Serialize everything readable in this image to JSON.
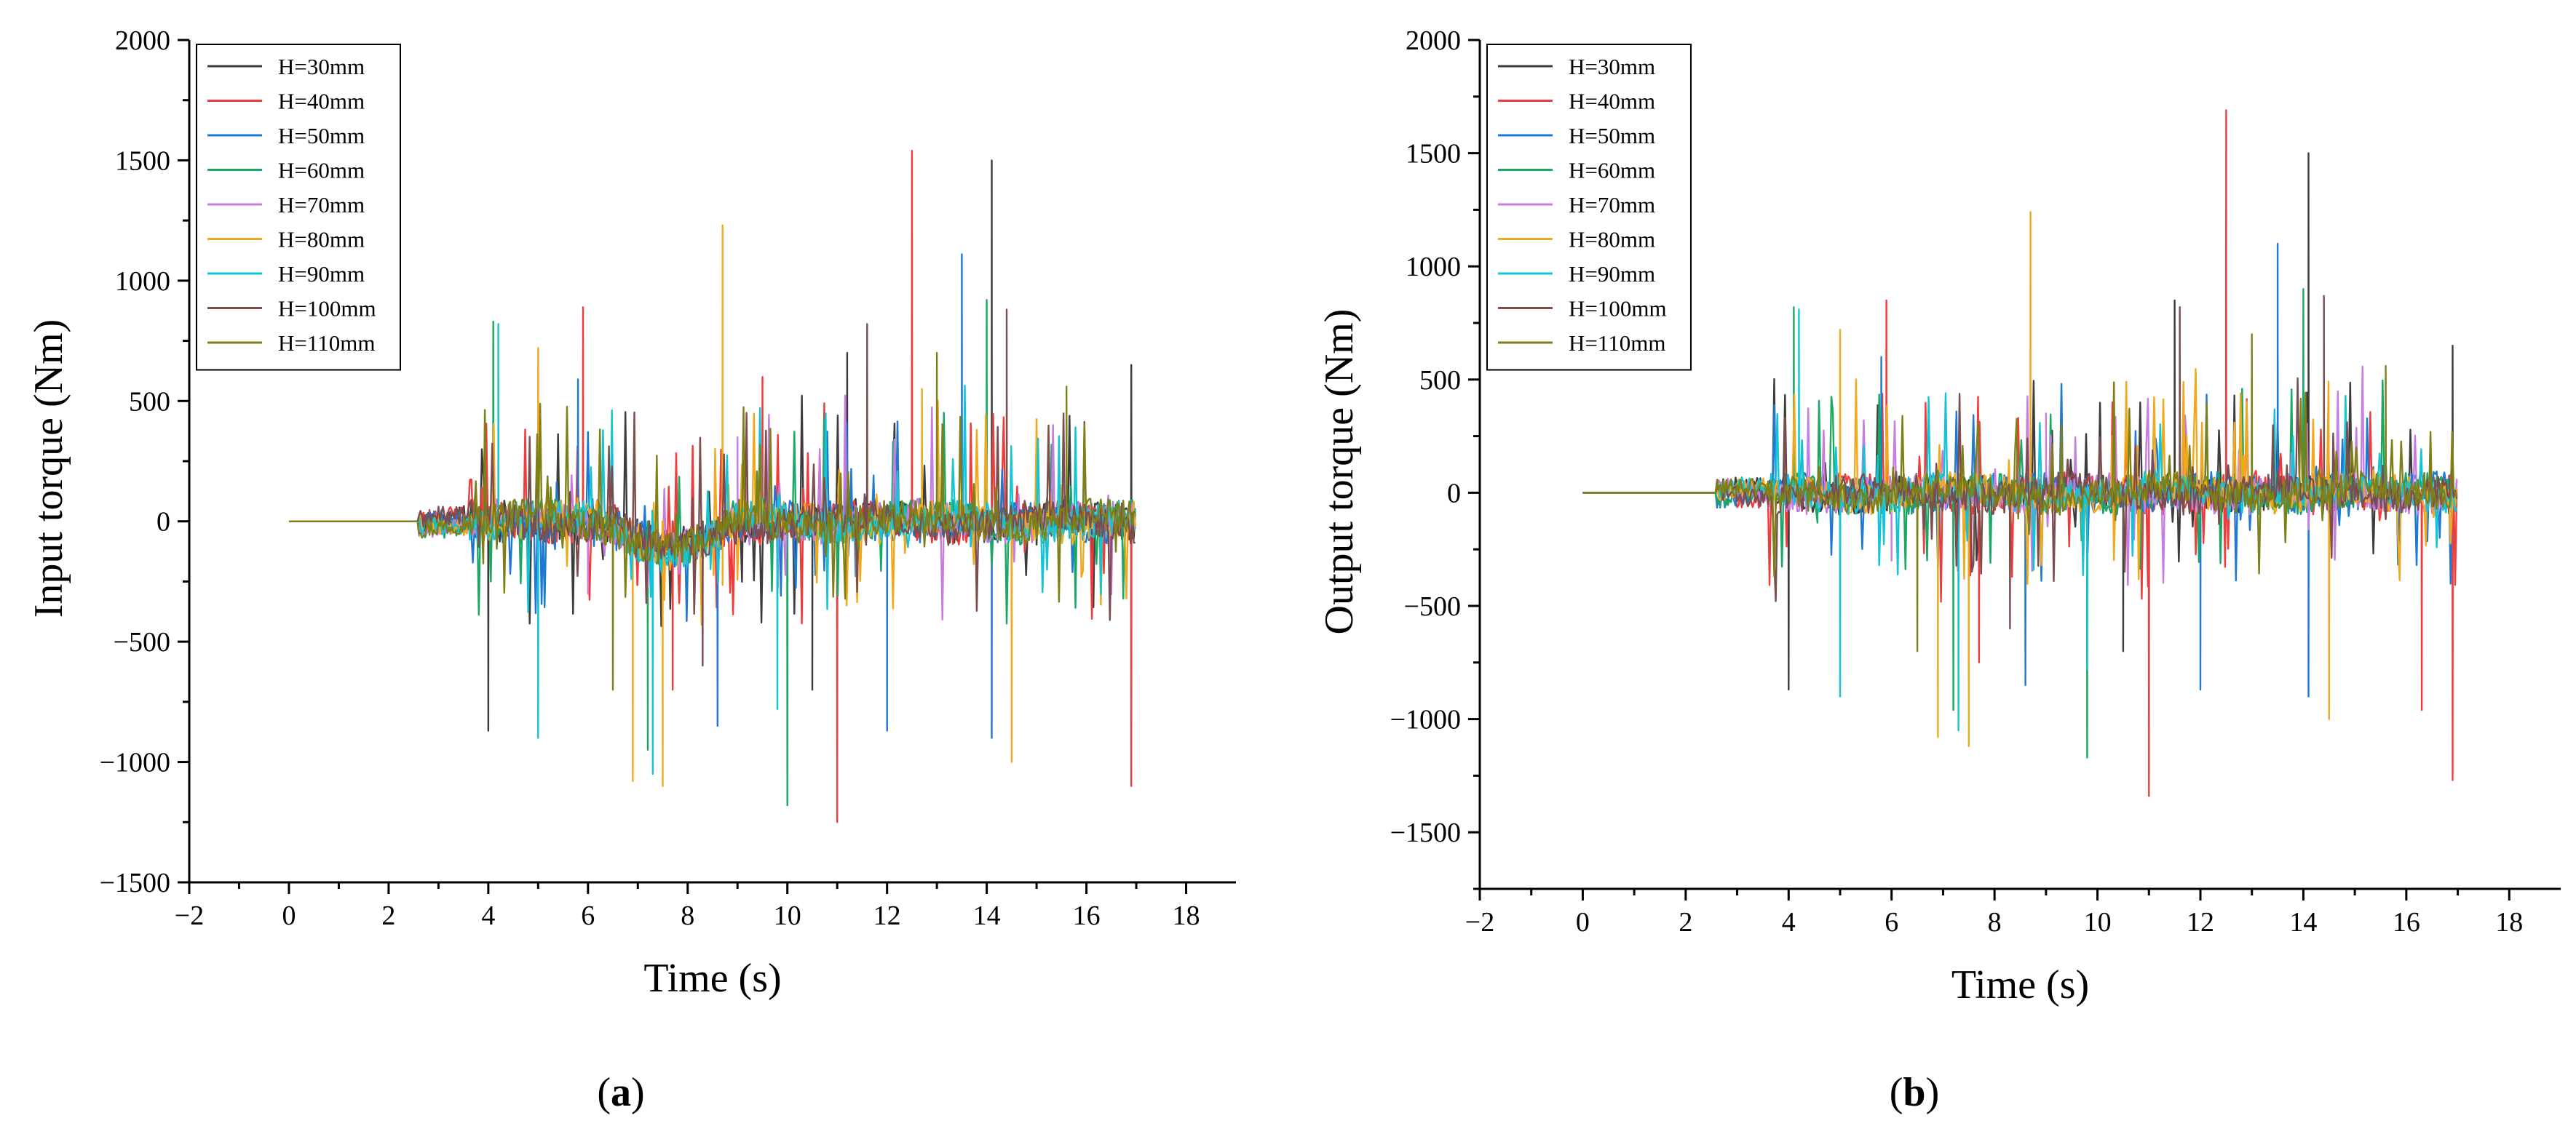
{
  "chart_data": [
    {
      "type": "line",
      "panel_label": "a",
      "title": "",
      "xlabel": "Time  (s)",
      "ylabel": "Input torque  (Nm)",
      "xlim": [
        -2,
        19
      ],
      "ylim": [
        -1500,
        2000
      ],
      "xticks": [
        -2,
        0,
        2,
        4,
        6,
        8,
        10,
        12,
        14,
        16,
        18
      ],
      "yticks": [
        -1500,
        -1000,
        -500,
        0,
        500,
        1000,
        1500,
        2000
      ],
      "legend_position": "top-left",
      "series": [
        {
          "name": "H=30mm",
          "color": "#3c3c3c",
          "seed": 11,
          "spikes": [
            [
              14.1,
              1500
            ],
            [
              11.2,
              700
            ],
            [
              16.9,
              650
            ],
            [
              4.0,
              -870
            ],
            [
              10.5,
              -700
            ]
          ]
        },
        {
          "name": "H=40mm",
          "color": "#ef3b3b",
          "seed": 23,
          "spikes": [
            [
              12.5,
              1540
            ],
            [
              5.9,
              890
            ],
            [
              11.0,
              -1250
            ],
            [
              16.9,
              -1100
            ],
            [
              7.7,
              -700
            ],
            [
              9.5,
              600
            ]
          ]
        },
        {
          "name": "H=50mm",
          "color": "#1f78d1",
          "seed": 37,
          "spikes": [
            [
              13.5,
              1110
            ],
            [
              5.8,
              590
            ],
            [
              14.1,
              -900
            ],
            [
              8.6,
              -850
            ],
            [
              12.0,
              -870
            ]
          ]
        },
        {
          "name": "H=60mm",
          "color": "#1aa663",
          "seed": 41,
          "spikes": [
            [
              4.1,
              830
            ],
            [
              10.0,
              -1180
            ],
            [
              7.2,
              -950
            ],
            [
              14.0,
              920
            ]
          ]
        },
        {
          "name": "H=70mm",
          "color": "#c77ce0",
          "seed": 53,
          "spikes": [
            [
              9.0,
              350
            ],
            [
              6.0,
              -300
            ]
          ]
        },
        {
          "name": "H=80mm",
          "color": "#f0a91e",
          "seed": 61,
          "spikes": [
            [
              8.7,
              1230
            ],
            [
              7.5,
              -1100
            ],
            [
              6.9,
              -1080
            ],
            [
              5.0,
              720
            ],
            [
              14.5,
              -1000
            ],
            [
              12.7,
              550
            ]
          ]
        },
        {
          "name": "H=90mm",
          "color": "#12c4d6",
          "seed": 73,
          "spikes": [
            [
              5.0,
              -900
            ],
            [
              7.3,
              -1050
            ],
            [
              9.8,
              -780
            ],
            [
              4.2,
              820
            ]
          ]
        },
        {
          "name": "H=100mm",
          "color": "#7a4e4e",
          "seed": 89,
          "spikes": [
            [
              11.6,
              820
            ],
            [
              14.4,
              880
            ],
            [
              8.3,
              -600
            ]
          ]
        },
        {
          "name": "H=110mm",
          "color": "#7f7f18",
          "seed": 97,
          "spikes": [
            [
              13.0,
              700
            ],
            [
              15.6,
              560
            ],
            [
              6.5,
              -700
            ]
          ]
        }
      ],
      "series_note": "Approximated waveforms: ~0 for t<2.6 s, then oscillatory torque with large spikes until t=17 s."
    },
    {
      "type": "line",
      "panel_label": "b",
      "title": "",
      "xlabel": "Time  (s)",
      "ylabel": "Output torque  (Nm)",
      "xlim": [
        -2,
        19
      ],
      "ylim": [
        -1750,
        2000
      ],
      "xticks": [
        -2,
        0,
        2,
        4,
        6,
        8,
        10,
        12,
        14,
        16,
        18
      ],
      "yticks": [
        -1500,
        -1000,
        -500,
        0,
        500,
        1000,
        1500,
        2000
      ],
      "legend_position": "top-left",
      "series": [
        {
          "name": "H=30mm",
          "color": "#3c3c3c",
          "seed": 13,
          "spikes": [
            [
              14.1,
              1500
            ],
            [
              11.5,
              850
            ],
            [
              16.9,
              650
            ],
            [
              4.0,
              -870
            ],
            [
              10.5,
              -700
            ]
          ]
        },
        {
          "name": "H=40mm",
          "color": "#ef3b3b",
          "seed": 29,
          "spikes": [
            [
              12.5,
              1690
            ],
            [
              5.9,
              850
            ],
            [
              11.0,
              -1340
            ],
            [
              16.9,
              -1270
            ],
            [
              7.7,
              -750
            ],
            [
              16.3,
              -960
            ]
          ]
        },
        {
          "name": "H=50mm",
          "color": "#1f78d1",
          "seed": 31,
          "spikes": [
            [
              13.5,
              1100
            ],
            [
              5.8,
              600
            ],
            [
              14.1,
              -900
            ],
            [
              8.6,
              -850
            ],
            [
              12.0,
              -870
            ]
          ]
        },
        {
          "name": "H=60mm",
          "color": "#1aa663",
          "seed": 43,
          "spikes": [
            [
              4.1,
              820
            ],
            [
              9.8,
              -1170
            ],
            [
              7.2,
              -960
            ],
            [
              14.0,
              900
            ]
          ]
        },
        {
          "name": "H=70mm",
          "color": "#c77ce0",
          "seed": 59,
          "spikes": [
            [
              9.0,
              350
            ],
            [
              6.0,
              -300
            ]
          ]
        },
        {
          "name": "H=80mm",
          "color": "#f0a91e",
          "seed": 67,
          "spikes": [
            [
              8.7,
              1240
            ],
            [
              7.5,
              -1120
            ],
            [
              6.9,
              -1080
            ],
            [
              5.0,
              720
            ],
            [
              14.5,
              -1000
            ]
          ]
        },
        {
          "name": "H=90mm",
          "color": "#12c4d6",
          "seed": 79,
          "spikes": [
            [
              5.0,
              -900
            ],
            [
              7.3,
              -1050
            ],
            [
              9.8,
              -780
            ],
            [
              4.2,
              810
            ]
          ]
        },
        {
          "name": "H=100mm",
          "color": "#7a4e4e",
          "seed": 83,
          "spikes": [
            [
              11.6,
              820
            ],
            [
              14.4,
              870
            ],
            [
              8.3,
              -600
            ]
          ]
        },
        {
          "name": "H=110mm",
          "color": "#7f7f18",
          "seed": 101,
          "spikes": [
            [
              13.0,
              700
            ],
            [
              15.6,
              560
            ],
            [
              6.5,
              -700
            ]
          ]
        }
      ],
      "series_note": "Approximated waveforms: ~0 for t<2.6 s, then oscillatory torque with large spikes until t=17 s."
    }
  ]
}
